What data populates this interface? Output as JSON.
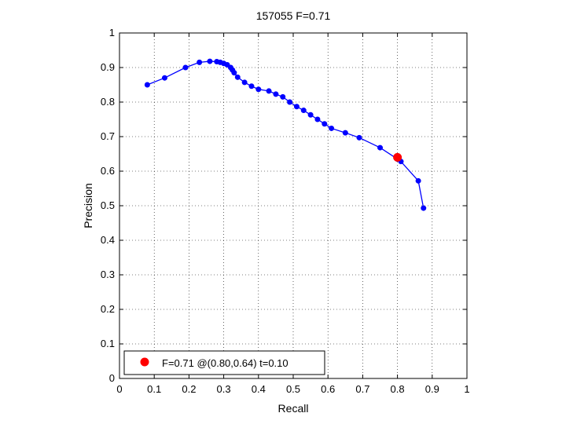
{
  "chart_data": {
    "type": "line",
    "title": "157055 F=0.71",
    "xlabel": "Recall",
    "ylabel": "Precision",
    "xlim": [
      0,
      1
    ],
    "ylim": [
      0,
      1
    ],
    "xticks": [
      "0",
      "0.1",
      "0.2",
      "0.3",
      "0.4",
      "0.5",
      "0.6",
      "0.7",
      "0.8",
      "0.9",
      "1"
    ],
    "yticks": [
      "0",
      "0.1",
      "0.2",
      "0.3",
      "0.4",
      "0.5",
      "0.6",
      "0.7",
      "0.8",
      "0.9",
      "1"
    ],
    "grid": true,
    "series": [
      {
        "color": "#0000ff",
        "x": [
          0.08,
          0.13,
          0.19,
          0.23,
          0.26,
          0.28,
          0.29,
          0.3,
          0.31,
          0.32,
          0.325,
          0.33,
          0.34,
          0.36,
          0.38,
          0.4,
          0.43,
          0.45,
          0.47,
          0.49,
          0.51,
          0.53,
          0.55,
          0.57,
          0.59,
          0.61,
          0.65,
          0.69,
          0.75,
          0.8,
          0.81,
          0.86,
          0.875
        ],
        "y": [
          0.85,
          0.87,
          0.9,
          0.915,
          0.918,
          0.917,
          0.915,
          0.912,
          0.908,
          0.9,
          0.893,
          0.885,
          0.872,
          0.857,
          0.846,
          0.837,
          0.832,
          0.823,
          0.815,
          0.8,
          0.787,
          0.776,
          0.763,
          0.75,
          0.737,
          0.724,
          0.711,
          0.697,
          0.668,
          0.635,
          0.628,
          0.572,
          0.493
        ]
      }
    ],
    "highlight": {
      "x": 0.8,
      "y": 0.64,
      "color": "#ff0000"
    },
    "legend": {
      "position": "bottom-left",
      "label": "F=0.71 @(0.80,0.64) t=0.10"
    }
  }
}
